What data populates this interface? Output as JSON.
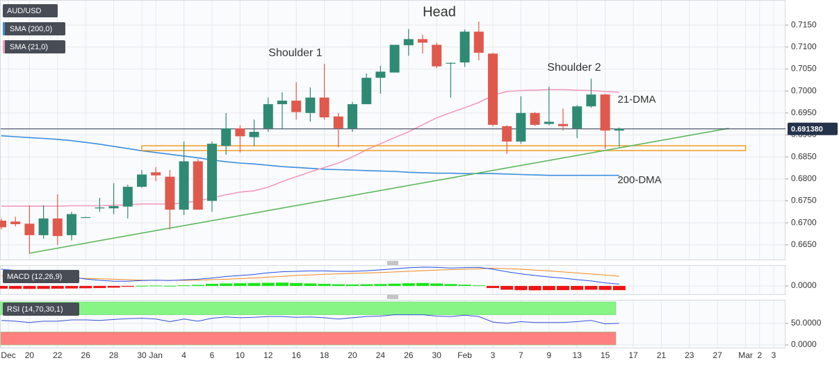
{
  "chart_data": [
    {
      "type": "candlestick",
      "title": "AUD/USD",
      "up_color": "#2f8a74",
      "down_color": "#e0594d",
      "open": [
        0.6705,
        0.6703,
        0.6698,
        0.6672,
        0.671,
        0.6672,
        0.6713,
        0.6733,
        0.6733,
        0.6737,
        0.6782,
        0.6815,
        0.6805,
        0.673,
        0.684,
        0.675,
        0.6875,
        0.6915,
        0.6895,
        0.6915,
        0.697,
        0.6978,
        0.695,
        0.6985,
        0.6942,
        0.6915,
        0.697,
        0.703,
        0.7042,
        0.7104,
        0.7118,
        0.7105,
        0.7063,
        0.7065,
        0.7135,
        0.7085,
        0.692,
        0.6885,
        0.695,
        0.6925,
        0.6925,
        0.6915,
        0.6965,
        0.6992,
        0.691
      ],
      "high": [
        0.671,
        0.6714,
        0.674,
        0.674,
        0.6765,
        0.6725,
        0.6714,
        0.6757,
        0.679,
        0.6787,
        0.682,
        0.6827,
        0.682,
        0.6885,
        0.6845,
        0.6885,
        0.695,
        0.6922,
        0.6935,
        0.6985,
        0.6997,
        0.702,
        0.7008,
        0.7062,
        0.695,
        0.6975,
        0.704,
        0.7057,
        0.7105,
        0.7141,
        0.7128,
        0.711,
        0.7065,
        0.714,
        0.7158,
        0.7087,
        0.6922,
        0.6988,
        0.6952,
        0.701,
        0.696,
        0.6968,
        0.7028,
        0.6994,
        0.6917
      ],
      "low": [
        0.6685,
        0.6692,
        0.663,
        0.6664,
        0.665,
        0.666,
        0.6712,
        0.6725,
        0.672,
        0.671,
        0.678,
        0.6795,
        0.6685,
        0.6718,
        0.673,
        0.6725,
        0.6855,
        0.686,
        0.6875,
        0.6907,
        0.6915,
        0.6935,
        0.693,
        0.6935,
        0.6872,
        0.6907,
        0.697,
        0.6994,
        0.7042,
        0.708,
        0.7085,
        0.7052,
        0.6985,
        0.7055,
        0.707,
        0.692,
        0.6857,
        0.688,
        0.692,
        0.6922,
        0.691,
        0.6893,
        0.6962,
        0.6868,
        0.6873
      ],
      "close": [
        0.669,
        0.6697,
        0.6672,
        0.671,
        0.667,
        0.672,
        0.6713,
        0.6735,
        0.6738,
        0.6782,
        0.681,
        0.6808,
        0.673,
        0.684,
        0.673,
        0.688,
        0.6915,
        0.6897,
        0.6907,
        0.697,
        0.6978,
        0.6952,
        0.6985,
        0.694,
        0.6915,
        0.697,
        0.703,
        0.7044,
        0.7105,
        0.7118,
        0.711,
        0.7056,
        0.7064,
        0.7135,
        0.7087,
        0.6923,
        0.6885,
        0.695,
        0.6923,
        0.693,
        0.692,
        0.6965,
        0.6992,
        0.691,
        0.6914
      ],
      "series": [
        {
          "name": "SMA (200,0)",
          "color": "#3a8ee0",
          "values": [
            0.6898,
            0.6896,
            0.6894,
            0.6892,
            0.689,
            0.6887,
            0.6883,
            0.6879,
            0.6874,
            0.6869,
            0.6864,
            0.686,
            0.6856,
            0.6852,
            0.6848,
            0.6843,
            0.6839,
            0.6836,
            0.6834,
            0.6831,
            0.6828,
            0.6826,
            0.6824,
            0.6822,
            0.6821,
            0.682,
            0.6819,
            0.6818,
            0.6817,
            0.6815,
            0.6814,
            0.6813,
            0.6813,
            0.6812,
            0.6812,
            0.6812,
            0.6811,
            0.681,
            0.6809,
            0.6808,
            0.6808,
            0.6808,
            0.6808,
            0.6808,
            0.6808
          ]
        },
        {
          "name": "SMA (21,0)",
          "color": "#f29ac0",
          "values": [
            0.6738,
            0.6738,
            0.6738,
            0.6738,
            0.6738,
            0.6739,
            0.6739,
            0.6739,
            0.674,
            0.6741,
            0.6743,
            0.6743,
            0.6743,
            0.6745,
            0.675,
            0.6757,
            0.6764,
            0.677,
            0.6773,
            0.6781,
            0.6794,
            0.6805,
            0.6816,
            0.6826,
            0.6836,
            0.685,
            0.6866,
            0.688,
            0.6894,
            0.6907,
            0.6923,
            0.6939,
            0.6951,
            0.6962,
            0.6974,
            0.699,
            0.6999,
            0.7001,
            0.7002,
            0.7003,
            0.7003,
            0.7002,
            0.7001,
            0.6999,
            0.6997
          ]
        }
      ],
      "annotations": [
        {
          "text": "Head",
          "color": "#f39c1f"
        },
        {
          "text": "Shoulder 1",
          "color": "#f39c1f"
        },
        {
          "text": "Shoulder 2",
          "color": "#f39c1f"
        },
        {
          "text": "21-DMA",
          "color": "#f29ac0"
        },
        {
          "text": "200-DMA",
          "color": "#3a8ee0"
        }
      ],
      "trendline": {
        "color": "#5cb85c",
        "start": [
          2,
          0.6631
        ],
        "end": [
          51.8,
          0.6915
        ]
      },
      "support_zone": {
        "color": "#f39c1f",
        "low": 0.68645,
        "high": 0.68755,
        "start": 10,
        "end": 53
      },
      "last_price": {
        "value": 0.69138,
        "label": "0.691380",
        "color": "#24324a"
      },
      "ylim": [
        0.6615,
        0.7207
      ],
      "yticks": [
        {
          "value": 0.715,
          "label": "0.7150"
        },
        {
          "value": 0.71,
          "label": "0.7100"
        },
        {
          "value": 0.705,
          "label": "0.7050"
        },
        {
          "value": 0.7,
          "label": "0.7000"
        },
        {
          "value": 0.695,
          "label": "0.6950"
        },
        {
          "value": 0.69,
          "label": "0.6900"
        },
        {
          "value": 0.685,
          "label": "0.6850"
        },
        {
          "value": 0.68,
          "label": "0.6800"
        },
        {
          "value": 0.675,
          "label": "0.6750"
        },
        {
          "value": 0.67,
          "label": "0.6700"
        },
        {
          "value": 0.665,
          "label": "0.6650"
        }
      ],
      "xticks": [
        {
          "value": 0.5,
          "label": "Dec"
        },
        {
          "value": 2,
          "label": "20"
        },
        {
          "value": 4,
          "label": "22"
        },
        {
          "value": 6,
          "label": "26"
        },
        {
          "value": 8,
          "label": "28"
        },
        {
          "value": 10,
          "label": "30"
        },
        {
          "value": 11,
          "label": "Jan"
        },
        {
          "value": 13,
          "label": "4"
        },
        {
          "value": 15,
          "label": "6"
        },
        {
          "value": 17,
          "label": "10"
        },
        {
          "value": 19,
          "label": "12"
        },
        {
          "value": 21,
          "label": "16"
        },
        {
          "value": 23,
          "label": "18"
        },
        {
          "value": 25,
          "label": "20"
        },
        {
          "value": 27,
          "label": "24"
        },
        {
          "value": 29,
          "label": "26"
        },
        {
          "value": 31,
          "label": "30"
        },
        {
          "value": 33,
          "label": "Feb"
        },
        {
          "value": 35,
          "label": "3"
        },
        {
          "value": 37,
          "label": "7"
        },
        {
          "value": 39,
          "label": "9"
        },
        {
          "value": 41,
          "label": "13"
        },
        {
          "value": 43,
          "label": "15"
        },
        {
          "value": 45,
          "label": "17"
        },
        {
          "value": 47,
          "label": "21"
        },
        {
          "value": 49,
          "label": "23"
        },
        {
          "value": 51,
          "label": "27"
        },
        {
          "value": 53,
          "label": "Mar"
        },
        {
          "value": 54,
          "label": "2"
        },
        {
          "value": 55,
          "label": "3"
        }
      ],
      "grid": true
    },
    {
      "type": "macd",
      "title": "MACD (12,26,9)",
      "macd_color": "#2850e8",
      "signal_color": "#f08a24",
      "positive_color": "#19e619",
      "negative_color": "#f01414",
      "macd": [
        0.008,
        0.0074,
        0.0066,
        0.0058,
        0.005,
        0.0042,
        0.0033,
        0.0027,
        0.0023,
        0.0023,
        0.0026,
        0.0028,
        0.0026,
        0.0029,
        0.0032,
        0.0038,
        0.0045,
        0.005,
        0.0055,
        0.0063,
        0.0068,
        0.007,
        0.0072,
        0.0072,
        0.007,
        0.007,
        0.0073,
        0.0077,
        0.0082,
        0.0087,
        0.009,
        0.0089,
        0.0086,
        0.0088,
        0.0089,
        0.008,
        0.0068,
        0.0058,
        0.005,
        0.0043,
        0.0037,
        0.003,
        0.0024,
        0.0015,
        0.0009
      ],
      "signal": [
        0.0048,
        0.0046,
        0.0044,
        0.0042,
        0.004,
        0.0038,
        0.0036,
        0.0034,
        0.0032,
        0.003,
        0.0028,
        0.0027,
        0.0027,
        0.0027,
        0.0028,
        0.003,
        0.0032,
        0.0035,
        0.0038,
        0.0042,
        0.0046,
        0.005,
        0.0053,
        0.0056,
        0.0058,
        0.006,
        0.0062,
        0.0064,
        0.0067,
        0.007,
        0.0073,
        0.0076,
        0.0078,
        0.008,
        0.0082,
        0.0085,
        0.0083,
        0.008,
        0.0076,
        0.0072,
        0.0067,
        0.0062,
        0.0057,
        0.0052,
        0.0046
      ],
      "histogram": [
        -0.0013,
        -0.0014,
        -0.0014,
        -0.0014,
        -0.0013,
        -0.0012,
        -0.0011,
        -0.001,
        -0.0008,
        -0.0004,
        0.0001,
        0.0002,
        0.0001,
        0.0003,
        0.0005,
        0.001,
        0.0012,
        0.0013,
        0.0014,
        0.0015,
        0.0016,
        0.0014,
        0.0012,
        0.001,
        0.0008,
        0.0007,
        0.0008,
        0.0009,
        0.0011,
        0.0013,
        0.0014,
        0.0012,
        0.0009,
        0.0006,
        0.0003,
        -0.001,
        -0.0018,
        -0.002,
        -0.0021,
        -0.002,
        -0.002,
        -0.0019,
        -0.0018,
        -0.0019,
        -0.002
      ],
      "ylim": [
        -0.0043,
        0.01
      ],
      "yticks": [
        {
          "value": 0,
          "label": "0.0000"
        }
      ]
    },
    {
      "type": "rsi",
      "title": "RSI (14,70,30,1)",
      "color": "#3050d8",
      "values": [
        57,
        55,
        52,
        55,
        55,
        58,
        58,
        57,
        59,
        61,
        62,
        60,
        54,
        60,
        55,
        62,
        65,
        63,
        64,
        66,
        66,
        64,
        65,
        63,
        60,
        63,
        66,
        67,
        70,
        70,
        70,
        67,
        66,
        69,
        66,
        53,
        50,
        54,
        52,
        52,
        52,
        54,
        57,
        49,
        50
      ],
      "zones": [
        {
          "from": 70,
          "to": 100,
          "color": "#86f586"
        },
        {
          "from": 0,
          "to": 30,
          "color": "#ff8080"
        }
      ],
      "ylim": [
        -8,
        104.8
      ],
      "yticks": [
        {
          "value": 50,
          "label": "50.0000"
        },
        {
          "value": 0,
          "label": "0.0000"
        }
      ]
    }
  ]
}
